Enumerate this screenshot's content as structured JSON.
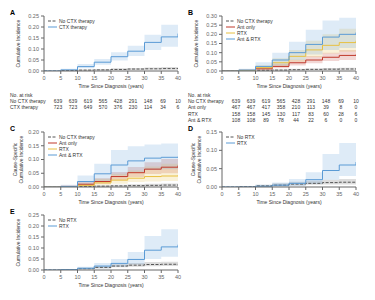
{
  "chart_data": [
    {
      "type": "step",
      "title": "A",
      "x_label": "Time Since Diagnosis (years)",
      "y_label": "Cumulative Incidence",
      "legend": "upper left",
      "grid": false,
      "x": [
        0,
        5,
        10,
        15,
        20,
        25,
        30,
        35,
        40
      ],
      "xlim": [
        0,
        40
      ],
      "xticks": [
        0,
        5,
        10,
        15,
        20,
        25,
        30,
        35,
        40
      ],
      "ylim": [
        0,
        0.25
      ],
      "yticks": [
        {
          "value": 0.0,
          "label": "0.00"
        },
        0.05,
        {
          "value": 0.1,
          "label": "0.10"
        },
        0.15,
        {
          "value": 0.2,
          "label": "0.20"
        },
        0.25
      ],
      "series": [
        {
          "name": "No CTX therapy",
          "color": "#555555",
          "line_style": "dashed",
          "values": [
            0,
            0.002,
            0.004,
            0.005,
            0.007,
            0.009,
            0.01,
            0.011,
            0.012
          ],
          "ci_low": [
            0,
            0.001,
            0.002,
            0.003,
            0.004,
            0.005,
            0.006,
            0.006,
            0.006
          ],
          "ci_high": [
            0,
            0.003,
            0.007,
            0.009,
            0.012,
            0.014,
            0.016,
            0.018,
            0.02
          ]
        },
        {
          "name": "CTX therapy",
          "color": "#5b9bd5",
          "line_style": "solid",
          "values": [
            0,
            0.005,
            0.02,
            0.04,
            0.065,
            0.09,
            0.13,
            0.155,
            0.17
          ],
          "ci_low": [
            0,
            0.002,
            0.012,
            0.028,
            0.048,
            0.068,
            0.095,
            0.11,
            0.115
          ],
          "ci_high": [
            0,
            0.01,
            0.032,
            0.055,
            0.085,
            0.115,
            0.165,
            0.21,
            0.24
          ]
        }
      ],
      "risk_table": {
        "header": "No. at risk",
        "rows": [
          {
            "name": "No CTX therapy",
            "values": [
              639,
              639,
              619,
              565,
              428,
              291,
              148,
              69,
              10
            ]
          },
          {
            "name": "CTX therapy",
            "values": [
              723,
              723,
              649,
              570,
              376,
              230,
              114,
              34,
              6
            ]
          }
        ]
      }
    },
    {
      "type": "step",
      "title": "B",
      "x_label": "Time Since Diagnosis (years)",
      "y_label": "Cumulative Incidence",
      "legend": "upper left",
      "grid": false,
      "x": [
        0,
        5,
        10,
        15,
        20,
        25,
        30,
        35,
        40
      ],
      "xlim": [
        0,
        40
      ],
      "xticks": [
        0,
        5,
        10,
        15,
        20,
        25,
        30,
        35,
        40
      ],
      "ylim": [
        0,
        0.3
      ],
      "yticks": [
        {
          "value": 0.0,
          "label": "0.00"
        },
        0.05,
        {
          "value": 0.1,
          "label": "0.10"
        },
        0.15,
        {
          "value": 0.2,
          "label": "0.20"
        },
        0.25,
        {
          "value": 0.3,
          "label": "0.30"
        }
      ],
      "series": [
        {
          "name": "No CTX therapy",
          "color": "#555555",
          "line_style": "dashed",
          "values": [
            0,
            0.002,
            0.004,
            0.005,
            0.007,
            0.009,
            0.01,
            0.011,
            0.012
          ],
          "ci_low": [
            0,
            0.001,
            0.002,
            0.003,
            0.004,
            0.005,
            0.006,
            0.006,
            0.006
          ],
          "ci_high": [
            0,
            0.003,
            0.007,
            0.009,
            0.012,
            0.014,
            0.016,
            0.018,
            0.02
          ]
        },
        {
          "name": "Ant only",
          "color": "#c0392b",
          "line_style": "solid",
          "values": [
            0,
            0.003,
            0.012,
            0.025,
            0.045,
            0.06,
            0.075,
            0.085,
            0.09
          ],
          "ci_low": [
            0,
            0.001,
            0.006,
            0.015,
            0.03,
            0.042,
            0.055,
            0.06,
            0.063
          ],
          "ci_high": [
            0,
            0.007,
            0.022,
            0.04,
            0.062,
            0.082,
            0.1,
            0.115,
            0.125
          ]
        },
        {
          "name": "RTX",
          "color": "#e8c040",
          "line_style": "solid",
          "values": [
            0,
            0.003,
            0.018,
            0.045,
            0.08,
            0.115,
            0.14,
            0.155,
            0.165
          ],
          "ci_low": [
            0,
            0.001,
            0.008,
            0.025,
            0.05,
            0.075,
            0.095,
            0.105,
            0.11
          ],
          "ci_high": [
            0,
            0.008,
            0.032,
            0.07,
            0.115,
            0.165,
            0.2,
            0.23,
            0.25
          ]
        },
        {
          "name": "Ant & RTX",
          "color": "#5b9bd5",
          "line_style": "solid",
          "values": [
            0,
            0.005,
            0.025,
            0.06,
            0.1,
            0.145,
            0.185,
            0.2,
            0.21
          ],
          "ci_low": [
            0,
            0.001,
            0.01,
            0.03,
            0.06,
            0.09,
            0.115,
            0.125,
            0.13
          ],
          "ci_high": [
            0,
            0.012,
            0.048,
            0.1,
            0.16,
            0.225,
            0.275,
            0.29,
            0.3
          ]
        }
      ],
      "risk_table": {
        "header": "No. at risk",
        "rows": [
          {
            "name": "No CTX therapy",
            "values": [
              639,
              639,
              619,
              565,
              428,
              291,
              148,
              69,
              10
            ]
          },
          {
            "name": "Ant only",
            "values": [
              467,
              467,
              417,
              358,
              210,
              113,
              39,
              8,
              0
            ]
          },
          {
            "name": "RTX",
            "values": [
              158,
              158,
              145,
              130,
              117,
              83,
              60,
              28,
              6
            ]
          },
          {
            "name": "Ant & RTX",
            "values": [
              108,
              108,
              89,
              78,
              44,
              22,
              6,
              0,
              0
            ]
          }
        ]
      }
    },
    {
      "type": "step",
      "title": "C",
      "x_label": "Time Since Diagnosis (years)",
      "y_label": "Cause-Specific\nCumulative Incidence",
      "legend": "upper left",
      "grid": false,
      "x": [
        0,
        5,
        10,
        15,
        20,
        25,
        30,
        35,
        40
      ],
      "xlim": [
        0,
        40
      ],
      "xticks": [
        0,
        5,
        10,
        15,
        20,
        25,
        30,
        35,
        40
      ],
      "ylim": [
        0,
        0.2
      ],
      "yticks": [
        {
          "value": 0.0,
          "label": "0.00"
        },
        0.05,
        {
          "value": 0.1,
          "label": "0.10"
        },
        0.15,
        {
          "value": 0.2,
          "label": "0.20"
        }
      ],
      "series": [
        {
          "name": "No CTX therapy",
          "color": "#555555",
          "line_style": "dashed",
          "values": [
            0,
            0.001,
            0.002,
            0.003,
            0.004,
            0.005,
            0.006,
            0.007,
            0.008
          ],
          "ci_low": [
            0,
            0.0,
            0.001,
            0.001,
            0.002,
            0.002,
            0.003,
            0.003,
            0.003
          ],
          "ci_high": [
            0,
            0.002,
            0.004,
            0.006,
            0.008,
            0.01,
            0.012,
            0.013,
            0.014
          ]
        },
        {
          "name": "Ant only",
          "color": "#c0392b",
          "line_style": "solid",
          "values": [
            0,
            0.002,
            0.01,
            0.02,
            0.038,
            0.052,
            0.065,
            0.072,
            0.078
          ],
          "ci_low": [
            0,
            0.001,
            0.005,
            0.012,
            0.025,
            0.036,
            0.047,
            0.05,
            0.053
          ],
          "ci_high": [
            0,
            0.005,
            0.018,
            0.032,
            0.055,
            0.073,
            0.09,
            0.102,
            0.112
          ]
        },
        {
          "name": "RTX",
          "color": "#e8c040",
          "line_style": "solid",
          "values": [
            0,
            0.001,
            0.006,
            0.015,
            0.025,
            0.032,
            0.038,
            0.04,
            0.042
          ],
          "ci_low": [
            0,
            0.0,
            0.002,
            0.006,
            0.012,
            0.018,
            0.02,
            0.022,
            0.024
          ],
          "ci_high": [
            0,
            0.004,
            0.014,
            0.03,
            0.048,
            0.06,
            0.075,
            0.085,
            0.095
          ]
        },
        {
          "name": "Ant & RTX",
          "color": "#5b9bd5",
          "line_style": "solid",
          "values": [
            0,
            0.002,
            0.02,
            0.048,
            0.08,
            0.095,
            0.105,
            0.108,
            0.11
          ],
          "ci_low": [
            0,
            0.0,
            0.006,
            0.02,
            0.042,
            0.055,
            0.062,
            0.065,
            0.068
          ],
          "ci_high": [
            0,
            0.008,
            0.042,
            0.085,
            0.135,
            0.148,
            0.155,
            0.158,
            0.16
          ]
        }
      ]
    },
    {
      "type": "step",
      "title": "D",
      "x_label": "Time Since Diagnosis (years)",
      "y_label": "Cause-Specific\nCumulative Incidence",
      "legend": "upper left",
      "grid": false,
      "x": [
        0,
        5,
        10,
        15,
        20,
        25,
        30,
        35,
        40
      ],
      "xlim": [
        0,
        40
      ],
      "xticks": [
        0,
        5,
        10,
        15,
        20,
        25,
        30,
        35,
        40
      ],
      "ylim": [
        0,
        0.15
      ],
      "yticks": [
        {
          "value": 0.0,
          "label": "0.00"
        },
        0.05,
        {
          "value": 0.1,
          "label": "0.10"
        },
        0.15
      ],
      "series": [
        {
          "name": "No RTX",
          "color": "#555555",
          "line_style": "dashed",
          "values": [
            0,
            0.001,
            0.003,
            0.005,
            0.008,
            0.01,
            0.012,
            0.013,
            0.014
          ],
          "ci_low": [
            0,
            0.0,
            0.001,
            0.002,
            0.004,
            0.006,
            0.007,
            0.007,
            0.007
          ],
          "ci_high": [
            0,
            0.003,
            0.006,
            0.01,
            0.014,
            0.017,
            0.02,
            0.022,
            0.023
          ]
        },
        {
          "name": "RTX",
          "color": "#5b9bd5",
          "line_style": "solid",
          "values": [
            0,
            0.0,
            0.002,
            0.005,
            0.01,
            0.02,
            0.045,
            0.06,
            0.068
          ],
          "ci_low": [
            0,
            0.0,
            0.0,
            0.001,
            0.003,
            0.008,
            0.02,
            0.03,
            0.035
          ],
          "ci_high": [
            0,
            0.002,
            0.006,
            0.012,
            0.022,
            0.04,
            0.09,
            0.12,
            0.14
          ]
        }
      ]
    },
    {
      "type": "step",
      "title": "E",
      "x_label": "Time Since Diagnosis (years)",
      "y_label": "Cumulative Incidence",
      "legend": "upper left",
      "grid": false,
      "x": [
        0,
        5,
        10,
        15,
        20,
        25,
        30,
        35,
        40
      ],
      "xlim": [
        0,
        40
      ],
      "xticks": [
        0,
        5,
        10,
        15,
        20,
        25,
        30,
        35,
        40
      ],
      "ylim": [
        0,
        0.25
      ],
      "yticks": [
        {
          "value": 0.0,
          "label": "0.00"
        },
        0.05,
        {
          "value": 0.1,
          "label": "0.10"
        },
        0.15,
        {
          "value": 0.2,
          "label": "0.20"
        },
        0.25
      ],
      "series": [
        {
          "name": "No RTX",
          "color": "#555555",
          "line_style": "dashed",
          "values": [
            0,
            0.002,
            0.006,
            0.012,
            0.018,
            0.022,
            0.025,
            0.026,
            0.027
          ],
          "ci_low": [
            0,
            0.001,
            0.003,
            0.007,
            0.012,
            0.015,
            0.017,
            0.018,
            0.018
          ],
          "ci_high": [
            0,
            0.004,
            0.01,
            0.018,
            0.026,
            0.032,
            0.036,
            0.038,
            0.04
          ]
        },
        {
          "name": "RTX",
          "color": "#5b9bd5",
          "line_style": "solid",
          "values": [
            0,
            0.002,
            0.008,
            0.018,
            0.03,
            0.048,
            0.09,
            0.105,
            0.115
          ],
          "ci_low": [
            0,
            0.001,
            0.003,
            0.008,
            0.015,
            0.025,
            0.05,
            0.06,
            0.065
          ],
          "ci_high": [
            0,
            0.005,
            0.015,
            0.032,
            0.05,
            0.082,
            0.155,
            0.185,
            0.21
          ]
        }
      ]
    }
  ]
}
